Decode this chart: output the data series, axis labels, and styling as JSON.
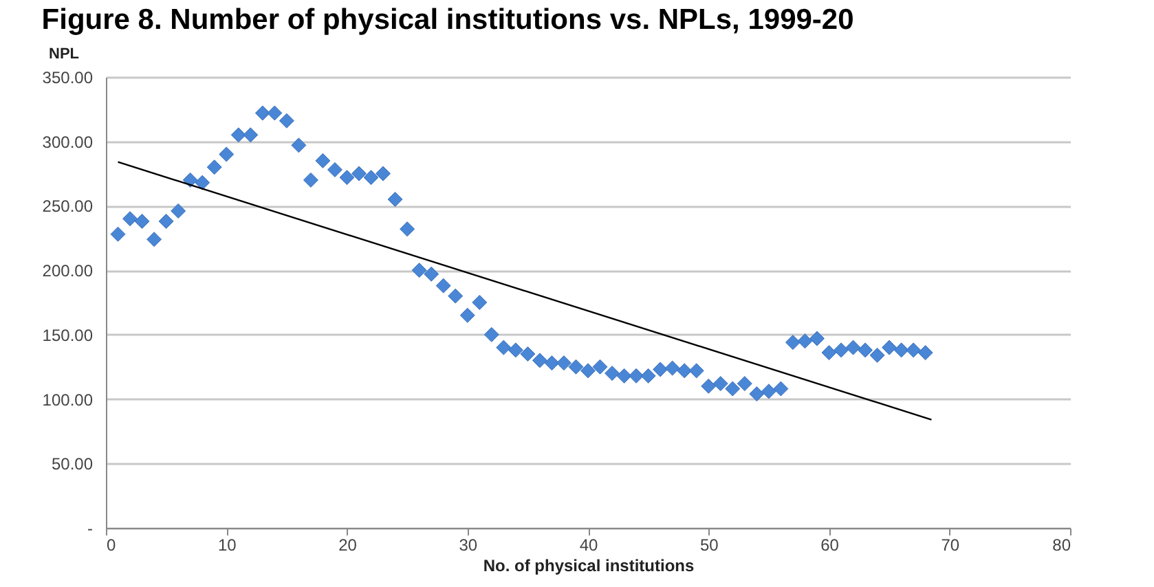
{
  "chart_data": {
    "type": "scatter",
    "title": "Figure 8. Number of physical institutions vs. NPLs, 1999-20",
    "xlabel": "No. of physical institutions",
    "ylabel": "NPL",
    "series": [
      {
        "color": "#4a86d6",
        "marker": "diamond",
        "x": [
          1,
          2,
          3,
          4,
          5,
          6,
          7,
          8,
          9,
          10,
          11,
          12,
          13,
          14,
          15,
          16,
          17,
          18,
          19,
          20,
          21,
          22,
          23,
          24,
          25,
          26,
          27,
          28,
          29,
          30,
          31,
          32,
          33,
          34,
          35,
          36,
          37,
          38,
          39,
          40,
          41,
          42,
          43,
          44,
          45,
          46,
          47,
          48,
          49,
          50,
          51,
          52,
          53,
          54,
          55,
          56,
          57,
          58,
          59,
          60,
          61,
          62,
          63,
          64,
          65,
          66,
          67,
          68
        ],
        "values": [
          228,
          240,
          238,
          224,
          238,
          246,
          270,
          268,
          280,
          290,
          305,
          305,
          322,
          322,
          316,
          297,
          270,
          285,
          278,
          272,
          275,
          272,
          275,
          255,
          232,
          200,
          197,
          188,
          180,
          165,
          175,
          150,
          140,
          138,
          135,
          130,
          128,
          128,
          125,
          122,
          125,
          120,
          118,
          118,
          118,
          123,
          124,
          122,
          122,
          110,
          112,
          108,
          112,
          104,
          106,
          108,
          144,
          145,
          147,
          136,
          138,
          140,
          138,
          134,
          140,
          138,
          138,
          136
        ]
      },
      {
        "type": "line",
        "color": "#000000",
        "marker": "none",
        "x": [
          1,
          68.5
        ],
        "values": [
          284,
          84
        ]
      }
    ],
    "xlim": [
      0,
      80
    ],
    "xticks": [
      0,
      10,
      20,
      30,
      40,
      50,
      60,
      70,
      80
    ],
    "ylim": [
      0,
      350
    ],
    "yticks": [
      {
        "value": 0,
        "label": "-"
      },
      {
        "value": 50,
        "label": "50.00"
      },
      {
        "value": 100,
        "label": "100.00"
      },
      {
        "value": 150,
        "label": "150.00"
      },
      {
        "value": 200,
        "label": "200.00"
      },
      {
        "value": 250,
        "label": "250.00"
      },
      {
        "value": 300,
        "label": "300.00"
      },
      {
        "value": 350,
        "label": "350.00"
      }
    ],
    "grid": "y"
  }
}
